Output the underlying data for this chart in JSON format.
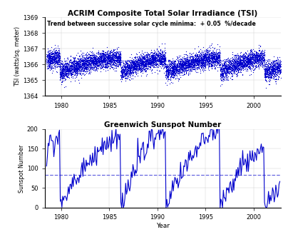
{
  "title_top": "ACRIM Composite Total Solar Irradiance (TSI)",
  "subtitle_top": "Trend between successive solar cycle minima:  + 0.05  %/decade",
  "title_bottom": "Greenwich Sunspot Number",
  "xlabel": "Year",
  "ylabel_top": "TSI (watts/sq. meter)",
  "ylabel_bottom": "Sunspot Number",
  "tsi_ylim": [
    1364,
    1369
  ],
  "tsi_yticks": [
    1364,
    1365,
    1366,
    1367,
    1368,
    1369
  ],
  "tsi_hline": 1366.25,
  "sunspot_ylim": [
    0,
    200
  ],
  "sunspot_yticks": [
    0,
    50,
    100,
    150,
    200
  ],
  "sunspot_hline": 83,
  "xlim": [
    1978.3,
    2002.8
  ],
  "xticks": [
    1980,
    1985,
    1990,
    1995,
    2000
  ],
  "color": "#0000CC",
  "hline_color": "#5555DD",
  "background": "#FFFFFF",
  "dot_size": 0.8,
  "line_width": 0.8,
  "seed": 42
}
